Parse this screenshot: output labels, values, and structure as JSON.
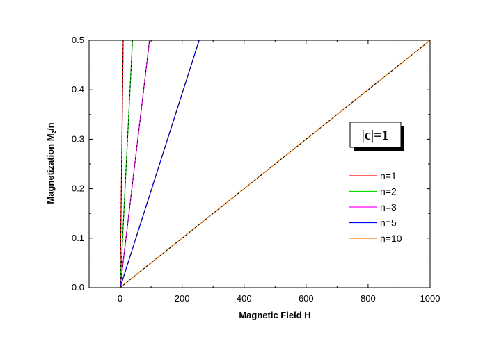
{
  "chart_data": {
    "type": "line",
    "title": "",
    "xlabel": "Magnetic Field H",
    "ylabel_main": "Magnetization  M",
    "ylabel_sub": "z",
    "ylabel_tail": "/n",
    "xlim": [
      -100,
      1000
    ],
    "ylim": [
      0,
      0.5
    ],
    "xticks": [
      0,
      200,
      400,
      600,
      800,
      1000
    ],
    "xtick_labels": [
      "0",
      "200",
      "400",
      "600",
      "800",
      "1000"
    ],
    "yticks": [
      0.0,
      0.1,
      0.2,
      0.3,
      0.4,
      0.5
    ],
    "ytick_labels": [
      "0.0",
      "0.1",
      "0.2",
      "0.3",
      "0.4",
      "0.5"
    ],
    "grid": false,
    "legend_position": "right",
    "annotation": "|c|=1",
    "series": [
      {
        "name": "n=1",
        "color": "#ff0000",
        "x": [
          0,
          10
        ],
        "y": [
          0,
          0.5
        ]
      },
      {
        "name": "n=2",
        "color": "#00dd00",
        "x": [
          0,
          40
        ],
        "y": [
          0,
          0.5
        ]
      },
      {
        "name": "n=3",
        "color": "#ff00ff",
        "x": [
          0,
          95
        ],
        "y": [
          0,
          0.5
        ]
      },
      {
        "name": "n=5",
        "color": "#0000ff",
        "x": [
          0,
          255
        ],
        "y": [
          0,
          0.5
        ]
      },
      {
        "name": "n=10",
        "color": "#ff8000",
        "x": [
          0,
          1000
        ],
        "y": [
          0,
          0.5
        ]
      }
    ],
    "overlay_style": "black dashed curve over each series"
  }
}
